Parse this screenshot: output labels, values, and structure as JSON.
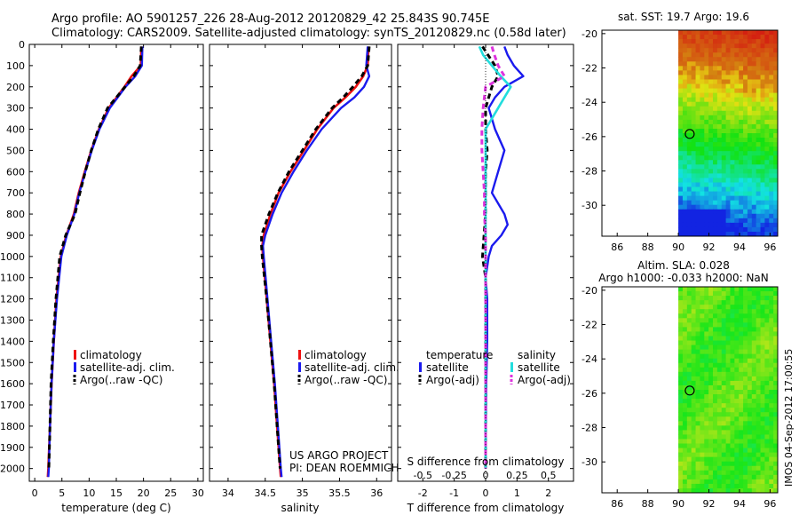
{
  "header": {
    "line1": "Argo profile: AO 5901257_226 28-Aug-2012 20120829_42 25.843S 90.745E",
    "line2": "Climatology: CARS2009. Satellite-adjusted climatology: synTS_20120829.nc (0.58d later)"
  },
  "side_label": "IMOS 04-Sep-2012 17:00:55",
  "project": {
    "line1": "US ARGO PROJECT",
    "line2": "PI: DEAN ROEMMICH"
  },
  "depth_ticks": [
    "0",
    "100",
    "200",
    "300",
    "400",
    "500",
    "600",
    "700",
    "800",
    "900",
    "1000",
    "1100",
    "1200",
    "1300",
    "1400",
    "1500",
    "1600",
    "1700",
    "1800",
    "1900",
    "2000"
  ],
  "colors": {
    "climatology": "#ee1111",
    "satellite": "#1a1aee",
    "argo": "#000000",
    "sal_sat": "#22dddd",
    "sal_argo": "#dd33dd"
  },
  "chart_data": [
    {
      "type": "line",
      "xlabel": "temperature (deg C)",
      "xlim": [
        -1,
        31
      ],
      "ylim": [
        0,
        2060
      ],
      "xticks": [
        "0",
        "5",
        "10",
        "15",
        "20",
        "25",
        "30"
      ],
      "legend": [
        "climatology",
        "satellite-adj. clim.",
        "Argo(..raw -QC)"
      ],
      "series": [
        {
          "name": "climatology",
          "depth": [
            10,
            100,
            150,
            200,
            300,
            400,
            500,
            600,
            700,
            800,
            900,
            1000,
            1200,
            1400,
            1600,
            1800,
            2000,
            2040
          ],
          "values": [
            19.6,
            19.5,
            17.8,
            16.5,
            13.6,
            11.8,
            10.4,
            9.2,
            8.1,
            7.2,
            5.8,
            4.8,
            4.0,
            3.5,
            3.1,
            2.8,
            2.5,
            2.4
          ]
        },
        {
          "name": "satellite",
          "depth": [
            10,
            100,
            150,
            200,
            300,
            400,
            500,
            600,
            700,
            800,
            900,
            1000,
            1200,
            1400,
            1600,
            1800,
            2000,
            2040
          ],
          "values": [
            19.8,
            19.7,
            18.5,
            16.7,
            13.8,
            11.9,
            10.5,
            9.3,
            8.2,
            7.3,
            5.9,
            4.9,
            4.1,
            3.5,
            3.1,
            2.8,
            2.6,
            2.5
          ]
        },
        {
          "name": "Argo",
          "depth": [
            10,
            100,
            150,
            200,
            300,
            400,
            500,
            600,
            700,
            800,
            900,
            1000,
            1200,
            1400,
            1600,
            1800,
            2000
          ],
          "values": [
            19.6,
            19.4,
            18.2,
            16.6,
            13.4,
            11.7,
            10.4,
            9.3,
            8.3,
            7.4,
            5.7,
            4.6,
            3.9,
            3.4,
            3.0,
            2.8,
            2.6
          ]
        }
      ]
    },
    {
      "type": "line",
      "xlabel": "salinity",
      "xlim": [
        33.75,
        36.2
      ],
      "ylim": [
        0,
        2060
      ],
      "xticks": [
        "34",
        "34.5",
        "35",
        "35.5",
        "36"
      ],
      "legend": [
        "climatology",
        "satellite-adj. clim.",
        "Argo(..raw -QC)"
      ],
      "series": [
        {
          "name": "climatology",
          "depth": [
            10,
            100,
            150,
            200,
            250,
            300,
            400,
            500,
            600,
            700,
            800,
            900,
            950,
            1000,
            1200,
            1400,
            1600,
            1800,
            2000,
            2040
          ],
          "values": [
            35.89,
            35.88,
            35.82,
            35.72,
            35.58,
            35.42,
            35.2,
            35.02,
            34.84,
            34.68,
            34.57,
            34.48,
            34.46,
            34.47,
            34.52,
            34.57,
            34.62,
            34.66,
            34.7,
            34.71
          ]
        },
        {
          "name": "satellite",
          "depth": [
            10,
            100,
            150,
            200,
            250,
            300,
            400,
            500,
            600,
            700,
            800,
            900,
            950,
            1000,
            1200,
            1400,
            1600,
            1800,
            2000,
            2040
          ],
          "values": [
            35.88,
            35.86,
            35.9,
            35.83,
            35.7,
            35.52,
            35.26,
            35.06,
            34.88,
            34.72,
            34.6,
            34.5,
            34.47,
            34.48,
            34.53,
            34.58,
            34.63,
            34.67,
            34.71,
            34.72
          ]
        },
        {
          "name": "Argo",
          "depth": [
            10,
            100,
            150,
            200,
            250,
            300,
            400,
            500,
            600,
            700,
            800,
            900,
            950,
            1000,
            1200,
            1400,
            1600,
            1800,
            2000
          ],
          "values": [
            35.9,
            35.88,
            35.8,
            35.68,
            35.55,
            35.4,
            35.18,
            35.0,
            34.82,
            34.67,
            34.55,
            34.45,
            34.45,
            34.46,
            34.52,
            34.57,
            34.62,
            34.66,
            34.7
          ]
        }
      ]
    },
    {
      "type": "line",
      "xlabel": "T difference from climatology",
      "xlabel_top": "S difference from climatology",
      "xlim": [
        -2.8,
        2.8
      ],
      "ylim": [
        0,
        2060
      ],
      "xticks": [
        "-2",
        "-1",
        "0",
        "1",
        "2"
      ],
      "xticks_top": [
        "-0.5",
        "-0.25",
        "0",
        "0.25",
        "0.5"
      ],
      "legend_headers": [
        "temperature",
        "salinity"
      ],
      "legend": [
        "satellite",
        "Argo(-adj)",
        "satellite",
        "Argo(-adj)"
      ],
      "series": [
        {
          "name": "T satellite",
          "depth": [
            10,
            50,
            100,
            150,
            200,
            250,
            300,
            400,
            500,
            600,
            700,
            800,
            850,
            900,
            950,
            1000,
            1100,
            1200,
            1400,
            1600,
            2000
          ],
          "values": [
            0.6,
            0.7,
            0.9,
            1.2,
            0.6,
            0.3,
            0.1,
            0.3,
            0.6,
            0.4,
            0.2,
            0.6,
            0.7,
            0.5,
            0.2,
            0.1,
            0.0,
            0.05,
            0.05,
            0.02,
            0.0
          ]
        },
        {
          "name": "T Argo",
          "depth": [
            10,
            100,
            150,
            200,
            250,
            300,
            400,
            500,
            600,
            700,
            800,
            900,
            1000,
            1100,
            1200,
            1400,
            1600,
            1800,
            2000
          ],
          "values": [
            -0.1,
            0.3,
            0.4,
            0.2,
            0.1,
            0.0,
            0.0,
            0.05,
            0.0,
            0.0,
            0.0,
            -0.05,
            -0.1,
            0.0,
            0.0,
            0.0,
            0.0,
            0.0,
            0.0
          ]
        },
        {
          "name": "S satellite",
          "depth": [
            10,
            50,
            100,
            150,
            200,
            250,
            300,
            400,
            500,
            600,
            800,
            1000,
            1200,
            1400,
            1600,
            1800,
            2000
          ],
          "values": [
            -0.05,
            -0.02,
            0.05,
            0.12,
            0.2,
            0.15,
            0.1,
            0.0,
            0.0,
            0.0,
            0.0,
            0.0,
            0.0,
            0.0,
            0.0,
            0.0,
            0.0
          ]
        },
        {
          "name": "S Argo",
          "depth": [
            10,
            50,
            100,
            150,
            200,
            300,
            400,
            500,
            600,
            700,
            800,
            900,
            1000,
            1200,
            1400,
            1600,
            1800,
            2000
          ],
          "values": [
            0.05,
            0.07,
            0.1,
            0.15,
            0.0,
            -0.02,
            -0.03,
            -0.03,
            -0.02,
            -0.01,
            -0.01,
            0.0,
            0.0,
            0.0,
            0.0,
            0.0,
            0.0,
            0.0
          ]
        }
      ]
    },
    {
      "type": "heatmap",
      "title": "sat. SST: 19.7 Argo: 19.6",
      "xlim": [
        85,
        96.5
      ],
      "ylim": [
        -31.8,
        -19.8
      ],
      "xticks": [
        "86",
        "88",
        "90",
        "92",
        "94",
        "96"
      ],
      "yticks": [
        "-20",
        "-22",
        "-24",
        "-26",
        "-28",
        "-30"
      ],
      "data_lon_min": 90,
      "marker": {
        "lon": 90.745,
        "lat": -25.843
      }
    },
    {
      "type": "heatmap",
      "title_line1": "Altim. SLA: 0.028",
      "title_line2": "Argo h1000: -0.033 h2000: NaN",
      "xlim": [
        85,
        96.5
      ],
      "ylim": [
        -31.8,
        -19.8
      ],
      "xticks": [
        "86",
        "88",
        "90",
        "92",
        "94",
        "96"
      ],
      "yticks": [
        "-20",
        "-22",
        "-24",
        "-26",
        "-28",
        "-30"
      ],
      "data_lon_min": 90,
      "marker": {
        "lon": 90.745,
        "lat": -25.843
      }
    }
  ]
}
